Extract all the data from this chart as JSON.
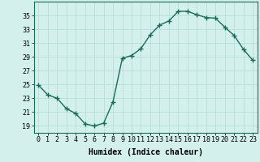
{
  "x": [
    0,
    1,
    2,
    3,
    4,
    5,
    6,
    7,
    8,
    9,
    10,
    11,
    12,
    13,
    14,
    15,
    16,
    17,
    18,
    19,
    20,
    21,
    22,
    23
  ],
  "y": [
    24.9,
    23.5,
    23.0,
    21.5,
    20.8,
    19.3,
    19.0,
    19.4,
    22.5,
    28.8,
    29.2,
    30.2,
    32.2,
    33.6,
    34.2,
    35.6,
    35.6,
    35.1,
    34.7,
    34.6,
    33.3,
    32.1,
    30.1,
    28.5
  ],
  "xlim": [
    -0.5,
    23.5
  ],
  "ylim": [
    18,
    37
  ],
  "yticks": [
    19,
    21,
    23,
    25,
    27,
    29,
    31,
    33,
    35
  ],
  "xticks": [
    0,
    1,
    2,
    3,
    4,
    5,
    6,
    7,
    8,
    9,
    10,
    11,
    12,
    13,
    14,
    15,
    16,
    17,
    18,
    19,
    20,
    21,
    22,
    23
  ],
  "xlabel": "Humidex (Indice chaleur)",
  "line_color": "#1a6b5a",
  "marker": "+",
  "marker_size": 4,
  "bg_color": "#d4f0ec",
  "grid_color": "#b8ddd8",
  "tick_fontsize": 6,
  "xlabel_fontsize": 7
}
